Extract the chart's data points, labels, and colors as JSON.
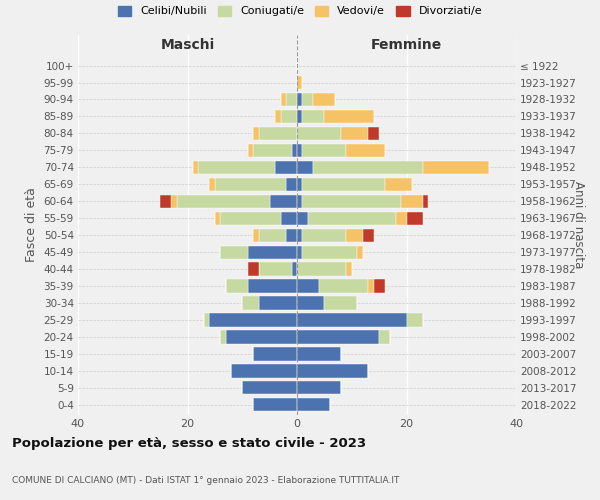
{
  "age_groups": [
    "0-4",
    "5-9",
    "10-14",
    "15-19",
    "20-24",
    "25-29",
    "30-34",
    "35-39",
    "40-44",
    "45-49",
    "50-54",
    "55-59",
    "60-64",
    "65-69",
    "70-74",
    "75-79",
    "80-84",
    "85-89",
    "90-94",
    "95-99",
    "100+"
  ],
  "birth_years": [
    "2018-2022",
    "2013-2017",
    "2008-2012",
    "2003-2007",
    "1998-2002",
    "1993-1997",
    "1988-1992",
    "1983-1987",
    "1978-1982",
    "1973-1977",
    "1968-1972",
    "1963-1967",
    "1958-1962",
    "1953-1957",
    "1948-1952",
    "1943-1947",
    "1938-1942",
    "1933-1937",
    "1928-1932",
    "1923-1927",
    "≤ 1922"
  ],
  "colors": {
    "celibi": "#4C72B0",
    "coniugati": "#C5D9A0",
    "vedovi": "#F5C265",
    "divorziati": "#C0392B"
  },
  "maschi": {
    "celibi": [
      8,
      10,
      12,
      8,
      13,
      16,
      7,
      9,
      1,
      9,
      2,
      3,
      5,
      2,
      4,
      1,
      0,
      0,
      0,
      0,
      0
    ],
    "coniugati": [
      0,
      0,
      0,
      0,
      1,
      1,
      3,
      4,
      6,
      5,
      5,
      11,
      17,
      13,
      14,
      7,
      7,
      3,
      2,
      0,
      0
    ],
    "vedovi": [
      0,
      0,
      0,
      0,
      0,
      0,
      0,
      0,
      0,
      0,
      1,
      1,
      1,
      1,
      1,
      1,
      1,
      1,
      1,
      0,
      0
    ],
    "divorziati": [
      0,
      0,
      0,
      0,
      0,
      0,
      0,
      0,
      2,
      0,
      0,
      0,
      2,
      0,
      0,
      0,
      0,
      0,
      0,
      0,
      0
    ]
  },
  "femmine": {
    "celibi": [
      6,
      8,
      13,
      8,
      15,
      20,
      5,
      4,
      0,
      1,
      1,
      2,
      1,
      1,
      3,
      1,
      0,
      1,
      1,
      0,
      0
    ],
    "coniugati": [
      0,
      0,
      0,
      0,
      2,
      3,
      6,
      9,
      9,
      10,
      8,
      16,
      18,
      15,
      20,
      8,
      8,
      4,
      2,
      0,
      0
    ],
    "vedovi": [
      0,
      0,
      0,
      0,
      0,
      0,
      0,
      1,
      1,
      1,
      3,
      2,
      4,
      5,
      12,
      7,
      5,
      9,
      4,
      1,
      0
    ],
    "divorziati": [
      0,
      0,
      0,
      0,
      0,
      0,
      0,
      2,
      0,
      0,
      2,
      3,
      1,
      0,
      0,
      0,
      2,
      0,
      0,
      0,
      0
    ]
  },
  "xlim": 40,
  "title": "Popolazione per età, sesso e stato civile - 2023",
  "subtitle": "COMUNE DI CALCIANO (MT) - Dati ISTAT 1° gennaio 2023 - Elaborazione TUTTITALIA.IT",
  "ylabel_left": "Fasce di età",
  "ylabel_right": "Anni di nascita",
  "xlabel_maschi": "Maschi",
  "xlabel_femmine": "Femmine",
  "legend_labels": [
    "Celibi/Nubili",
    "Coniugati/e",
    "Vedovi/e",
    "Divorziati/e"
  ],
  "background_color": "#f0f0f0"
}
